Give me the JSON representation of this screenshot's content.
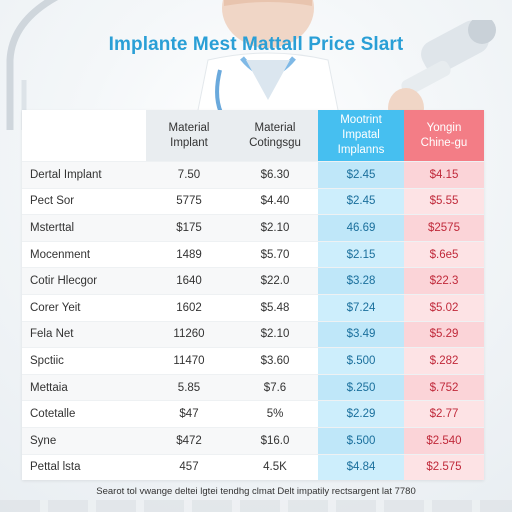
{
  "title": "Implante Mest Mattall Price Slart",
  "table": {
    "headers": [
      {
        "lines": [
          "",
          ""
        ]
      },
      {
        "lines": [
          "Material",
          "Implant"
        ]
      },
      {
        "lines": [
          "Material",
          "Cotingsgu"
        ]
      },
      {
        "lines": [
          "Mootrint",
          "Impatal",
          "Implanns"
        ]
      },
      {
        "lines": [
          "Yongin",
          "Chine-gu"
        ]
      }
    ],
    "rows": [
      [
        "Dertal Implant",
        "7.50",
        "$6.30",
        "$2.45",
        "$4.15"
      ],
      [
        "Pect Sor",
        "5775",
        "$4.40",
        "$2.45",
        "$5.55"
      ],
      [
        "Msterttal",
        "$175",
        "$2.10",
        "46.69",
        "$2575"
      ],
      [
        "Mocenment",
        "1489",
        "$5.70",
        "$2.15",
        "$.6e5"
      ],
      [
        "Cotir Hlecgor",
        "1640",
        "$22.0",
        "$3.28",
        "$22.3"
      ],
      [
        "Corer Yeit",
        "1602",
        "$5.48",
        "$7.24",
        "$5.02"
      ],
      [
        "Fela Net",
        "11260",
        "$2.10",
        "$3.49",
        "$5.29"
      ],
      [
        "Spctiic",
        "11470",
        "$3.60",
        "$.500",
        "$.282"
      ],
      [
        "Mettaia",
        "5.85",
        "$7.6",
        "$.250",
        "$.752"
      ],
      [
        "Cotetalle",
        "$47",
        "5%",
        "$2.29",
        "$2.77"
      ],
      [
        "Syne",
        "$472",
        "$16.0",
        "$.500",
        "$2.540"
      ],
      [
        "Pettal lsta",
        "457",
        "4.5K",
        "$4.84",
        "$2.575"
      ]
    ]
  },
  "footer": "Searot tol vwange deltei lgtei tendhg clmat Delt impatily rectsargent lat 7780",
  "colors": {
    "title": "#2a9fd6",
    "blue_header": "#46bff0",
    "pink_header": "#f37d86"
  }
}
